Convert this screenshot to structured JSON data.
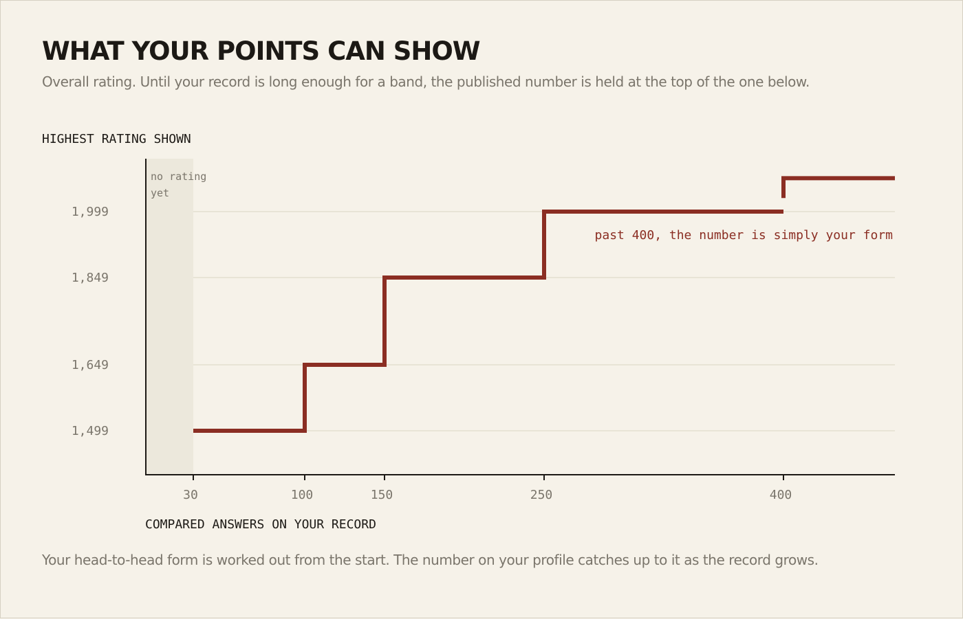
{
  "page": {
    "title": "WHAT YOUR POINTS CAN SHOW",
    "subtitle": "Overall rating. Until your record is long enough for a band, the published number is held at the top of the one below.",
    "footnote": "Your head-to-head form is worked out from the start. The number on your profile catches up to it as the record grows."
  },
  "chart_data": {
    "type": "line",
    "step": true,
    "ylabel": "HIGHEST RATING SHOWN",
    "xlabel": "COMPARED ANSWERS ON YOUR RECORD",
    "x_ticks": [
      30,
      100,
      150,
      250,
      400
    ],
    "x_tick_labels": [
      "30",
      "100",
      "150",
      "250",
      "400"
    ],
    "y_ticks": [
      1499,
      1649,
      1849,
      1999
    ],
    "y_tick_labels": [
      "1,499",
      "1,649",
      "1,849",
      "1,999"
    ],
    "xlim": [
      0,
      470
    ],
    "ylim": [
      1400,
      2100
    ],
    "grid": true,
    "shaded_region": {
      "x": [
        0,
        30
      ],
      "label": "no rating yet"
    },
    "series": [
      {
        "points": [
          [
            30,
            1499
          ],
          [
            100,
            1499
          ],
          [
            100,
            1649
          ],
          [
            150,
            1649
          ],
          [
            150,
            1849
          ],
          [
            250,
            1849
          ],
          [
            250,
            1999
          ],
          [
            400,
            1999
          ]
        ]
      },
      {
        "points": [
          [
            400,
            2030
          ],
          [
            400,
            2075
          ],
          [
            470,
            2075
          ]
        ]
      }
    ],
    "annotations": [
      {
        "text": "past 400, the number is simply your form",
        "x": 400,
        "y": 1999
      }
    ],
    "colors": {
      "line": "#8b2e23",
      "axis": "#1c1915",
      "grid": "#d9d5c2",
      "shade": "#ece8dc",
      "tick_text": "#7a756b",
      "annotation": "#8b2e23"
    }
  }
}
